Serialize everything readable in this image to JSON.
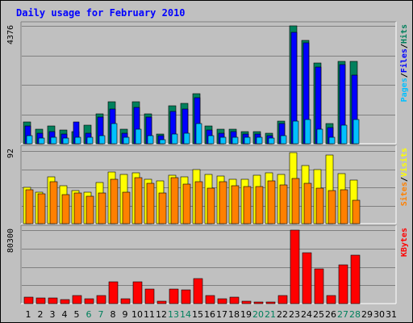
{
  "chart_data": {
    "type": "bar",
    "title": "Daily usage for February 2010",
    "days": [
      "1",
      "2",
      "3",
      "4",
      "5",
      "6",
      "7",
      "8",
      "9",
      "10",
      "11",
      "12",
      "13",
      "14",
      "15",
      "16",
      "17",
      "18",
      "19",
      "20",
      "21",
      "22",
      "23",
      "24",
      "25",
      "26",
      "27",
      "28",
      "29",
      "30",
      "31"
    ],
    "weekend_days": [
      "6",
      "7",
      "13",
      "14",
      "20",
      "21",
      "27",
      "28"
    ],
    "panels": [
      {
        "id": "hits",
        "scale_label": "4376",
        "ymax": 4376,
        "legend": [
          "Pages",
          "/",
          "Files",
          "/",
          "Hits"
        ],
        "series": [
          {
            "name": "Hits",
            "values": [
              800,
              550,
              650,
              500,
              450,
              700,
              1100,
              1550,
              550,
              1550,
              1100,
              350,
              1400,
              1500,
              1850,
              650,
              550,
              550,
              450,
              450,
              400,
              850,
              4376,
              3850,
              3000,
              750,
              3050,
              3050,
              0,
              0,
              0
            ]
          },
          {
            "name": "Files",
            "values": [
              650,
              400,
              450,
              350,
              800,
              400,
              1000,
              1300,
              400,
              1350,
              1000,
              300,
              1200,
              1300,
              1700,
              500,
              400,
              450,
              350,
              350,
              300,
              750,
              4150,
              3750,
              2850,
              600,
              2950,
              2550,
              0,
              0,
              0
            ]
          },
          {
            "name": "Pages",
            "values": [
              300,
              200,
              250,
              200,
              250,
              250,
              300,
              750,
              250,
              550,
              300,
              150,
              350,
              400,
              750,
              300,
              250,
              250,
              250,
              250,
              200,
              300,
              850,
              900,
              550,
              250,
              700,
              900,
              0,
              0,
              0
            ]
          }
        ]
      },
      {
        "id": "visits",
        "scale_label": "92",
        "ymax": 92,
        "legend": [
          "Sites",
          "/",
          "Visits"
        ],
        "series": [
          {
            "name": "Visits",
            "values": [
              46,
              40,
              59,
              48,
              42,
              40,
              52,
              65,
              62,
              64,
              56,
              54,
              61,
              59,
              68,
              62,
              60,
              56,
              56,
              61,
              64,
              62,
              90,
              74,
              68,
              87,
              63,
              55,
              0,
              0,
              0
            ]
          },
          {
            "name": "Sites",
            "values": [
              43,
              38,
              53,
              37,
              39,
              35,
              39,
              56,
              40,
              58,
              51,
              39,
              58,
              50,
              53,
              45,
              53,
              48,
              47,
              47,
              54,
              49,
              57,
              51,
              45,
              42,
              43,
              30,
              0,
              0,
              0
            ]
          }
        ]
      },
      {
        "id": "kbytes",
        "scale_label": "80300",
        "ymax": 80300,
        "legend": [
          "KBytes"
        ],
        "series": [
          {
            "name": "KBytes",
            "values": [
              7000,
              6000,
              6000,
              4000,
              9000,
              5000,
              9000,
              24000,
              5000,
              24000,
              16000,
              3000,
              16000,
              15000,
              27000,
              9000,
              5000,
              7000,
              3000,
              2000,
              2000,
              9000,
              80300,
              56000,
              38000,
              9000,
              42000,
              53000,
              0,
              0,
              0
            ]
          }
        ]
      }
    ],
    "colors": {
      "hits": "#00805c",
      "files": "#0000ff",
      "pages": "#00c0ff",
      "visits": "#ffff00",
      "sites": "#ff8000",
      "kbytes": "#ff0000",
      "title": "#0000ff",
      "weekend_label": "#00805c",
      "weekday_label": "#000000"
    }
  }
}
